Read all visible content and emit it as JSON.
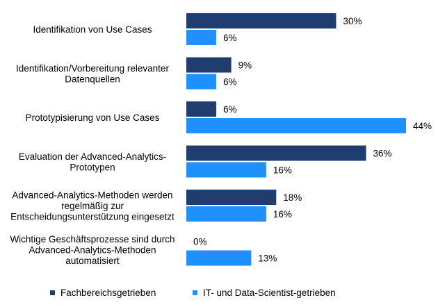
{
  "chart_data": {
    "type": "bar",
    "orientation": "horizontal",
    "categories": [
      [
        "Identifikation von Use Cases"
      ],
      [
        "Identifikation/Vorbereitung relevanter",
        "Datenquellen"
      ],
      [
        "Prototypisierung von Use Cases"
      ],
      [
        "Evaluation der Advanced-Analytics-",
        "Prototypen"
      ],
      [
        "Advanced-Analytics-Methoden werden",
        "regelmäßig zur",
        "Entscheidungsunterstützung eingesetzt"
      ],
      [
        "Wichtige Geschäftsprozesse sind durch",
        "Advanced-Analytics-Methoden",
        "automatisiert"
      ]
    ],
    "series": [
      {
        "name": "Fachbereichsgetrieben",
        "color": "#1f3d6e",
        "values": [
          30,
          9,
          6,
          36,
          18,
          0
        ],
        "labels": [
          "30%",
          "9%",
          "6%",
          "36%",
          "18%",
          "0%"
        ]
      },
      {
        "name": "IT- und Data-Scientist-getrieben",
        "color": "#1e90ff",
        "values": [
          6,
          6,
          44,
          16,
          16,
          13
        ],
        "labels": [
          "6%",
          "6%",
          "44%",
          "16%",
          "16%",
          "13%"
        ]
      }
    ],
    "xlim": [
      0,
      44
    ],
    "grid": false,
    "legend_position": "bottom"
  }
}
